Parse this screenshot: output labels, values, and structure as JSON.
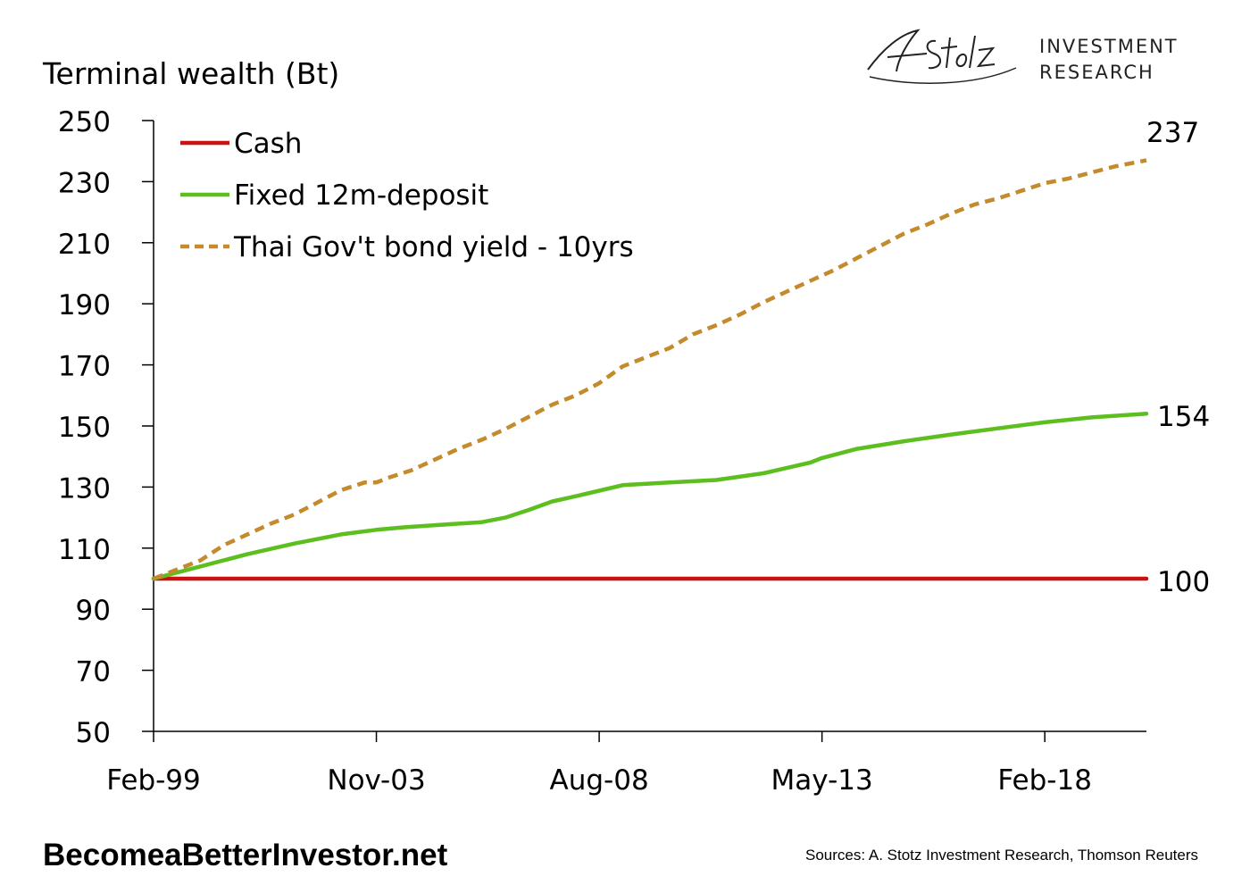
{
  "logo": {
    "signature": "A. Stotz",
    "line1": "INVESTMENT",
    "line2": "RESEARCH"
  },
  "footer": {
    "site": "BecomeaBetterInvestor.net",
    "sources": "Sources: A. Stotz Investment Research, Thomson Reuters"
  },
  "colors": {
    "cash": "#cc1111",
    "deposit": "#5cbf1f",
    "bond": "#c48a2c"
  },
  "chart_data": {
    "type": "line",
    "title": "",
    "ylabel": "Terminal wealth (Bt)",
    "xlabel": "",
    "ylim": [
      50,
      250
    ],
    "yticks": [
      50,
      70,
      90,
      110,
      130,
      150,
      170,
      190,
      210,
      230,
      250
    ],
    "xlim": [
      "Feb-99",
      "Apr-20"
    ],
    "xtick_labels": [
      "Feb-99",
      "Nov-03",
      "Aug-08",
      "May-13",
      "Feb-18"
    ],
    "grid": false,
    "legend_position": "top-left",
    "end_labels": [
      "237",
      "154",
      "100"
    ],
    "series": [
      {
        "name": "Cash",
        "style": "solid",
        "color_key": "cash",
        "points": [
          [
            "Feb-99",
            100
          ],
          [
            "Apr-20",
            100
          ]
        ]
      },
      {
        "name": "Fixed 12m-deposit",
        "style": "solid",
        "color_key": "deposit",
        "points": [
          [
            "Feb-99",
            100
          ],
          [
            "Feb-00",
            104
          ],
          [
            "Feb-01",
            108
          ],
          [
            "Feb-02",
            111.5
          ],
          [
            "Feb-03",
            114.5
          ],
          [
            "Nov-03",
            116
          ],
          [
            "Jun-04",
            116.8
          ],
          [
            "Feb-05",
            117.5
          ],
          [
            "Feb-06",
            118.5
          ],
          [
            "Aug-06",
            120
          ],
          [
            "Feb-07",
            122.5
          ],
          [
            "Aug-07",
            125.3
          ],
          [
            "Feb-08",
            127
          ],
          [
            "Aug-08",
            128.8
          ],
          [
            "Feb-09",
            130.6
          ],
          [
            "Feb-10",
            131.5
          ],
          [
            "Feb-11",
            132.3
          ],
          [
            "Feb-12",
            134.5
          ],
          [
            "Feb-13",
            138
          ],
          [
            "May-13",
            139.5
          ],
          [
            "Feb-14",
            142.5
          ],
          [
            "Feb-15",
            145
          ],
          [
            "Feb-16",
            147.2
          ],
          [
            "Feb-17",
            149.2
          ],
          [
            "Feb-18",
            151.2
          ],
          [
            "Feb-19",
            152.8
          ],
          [
            "Apr-20",
            154
          ]
        ]
      },
      {
        "name": "Thai Gov't bond yield - 10yrs",
        "style": "dashed",
        "color_key": "bond",
        "points": [
          [
            "Feb-99",
            100
          ],
          [
            "Aug-99",
            103
          ],
          [
            "Feb-00",
            106
          ],
          [
            "Aug-00",
            111
          ],
          [
            "Feb-01",
            114.5
          ],
          [
            "Aug-01",
            118
          ],
          [
            "Feb-02",
            121
          ],
          [
            "Aug-02",
            125
          ],
          [
            "Feb-03",
            129
          ],
          [
            "Aug-03",
            131.5
          ],
          [
            "Nov-03",
            131.5
          ],
          [
            "Feb-04",
            133
          ],
          [
            "Aug-04",
            135.5
          ],
          [
            "Feb-05",
            139
          ],
          [
            "Aug-05",
            142.5
          ],
          [
            "Feb-06",
            145.5
          ],
          [
            "Aug-06",
            149
          ],
          [
            "Feb-07",
            153
          ],
          [
            "Aug-07",
            157
          ],
          [
            "Feb-08",
            160
          ],
          [
            "Aug-08",
            164
          ],
          [
            "Feb-09",
            169.5
          ],
          [
            "Aug-09",
            172.5
          ],
          [
            "Feb-10",
            175.5
          ],
          [
            "Aug-10",
            180
          ],
          [
            "Feb-11",
            183
          ],
          [
            "Aug-11",
            186.5
          ],
          [
            "Feb-12",
            190.5
          ],
          [
            "Aug-12",
            194
          ],
          [
            "Feb-13",
            197.5
          ],
          [
            "Aug-13",
            201
          ],
          [
            "Feb-14",
            205
          ],
          [
            "Aug-14",
            209
          ],
          [
            "Feb-15",
            213
          ],
          [
            "Aug-15",
            216
          ],
          [
            "Feb-16",
            219.5
          ],
          [
            "Aug-16",
            222.5
          ],
          [
            "Feb-17",
            224.5
          ],
          [
            "Aug-17",
            227
          ],
          [
            "Feb-18",
            229.5
          ],
          [
            "Aug-18",
            231
          ],
          [
            "Feb-19",
            233
          ],
          [
            "Aug-19",
            235
          ],
          [
            "Apr-20",
            237
          ]
        ]
      }
    ]
  }
}
